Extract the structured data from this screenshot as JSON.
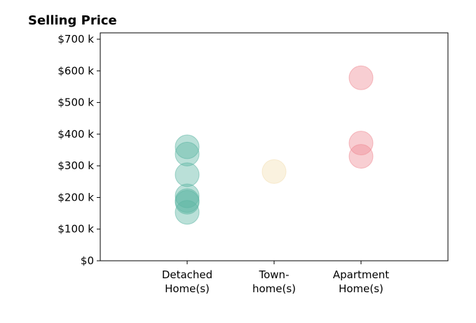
{
  "chart_data": {
    "type": "scatter",
    "title": "Selling Price",
    "xlabel": "",
    "ylabel": "",
    "ylim": [
      0,
      720000
    ],
    "y_ticks": [
      {
        "value": 0,
        "label": "$0"
      },
      {
        "value": 100000,
        "label": "$100 k"
      },
      {
        "value": 200000,
        "label": "$200 k"
      },
      {
        "value": 300000,
        "label": "$300 k"
      },
      {
        "value": 400000,
        "label": "$400 k"
      },
      {
        "value": 500000,
        "label": "$500 k"
      },
      {
        "value": 600000,
        "label": "$600 k"
      },
      {
        "value": 700000,
        "label": "$700 k"
      }
    ],
    "categories": [
      {
        "label_lines": [
          "Detached",
          "Home(s)"
        ]
      },
      {
        "label_lines": [
          "Town-",
          "home(s)"
        ]
      },
      {
        "label_lines": [
          "Apartment",
          "Home(s)"
        ]
      }
    ],
    "grid": false,
    "legend": "none",
    "series": [
      {
        "category_index": 0,
        "color": "#5bb5a2",
        "values": [
          360000,
          337000,
          272000,
          205000,
          190000,
          185000,
          153000
        ]
      },
      {
        "category_index": 1,
        "color": "#f3dfb2",
        "values": [
          282000
        ]
      },
      {
        "category_index": 2,
        "color": "#ef8a93",
        "values": [
          578000,
          372000,
          330000
        ]
      }
    ]
  }
}
